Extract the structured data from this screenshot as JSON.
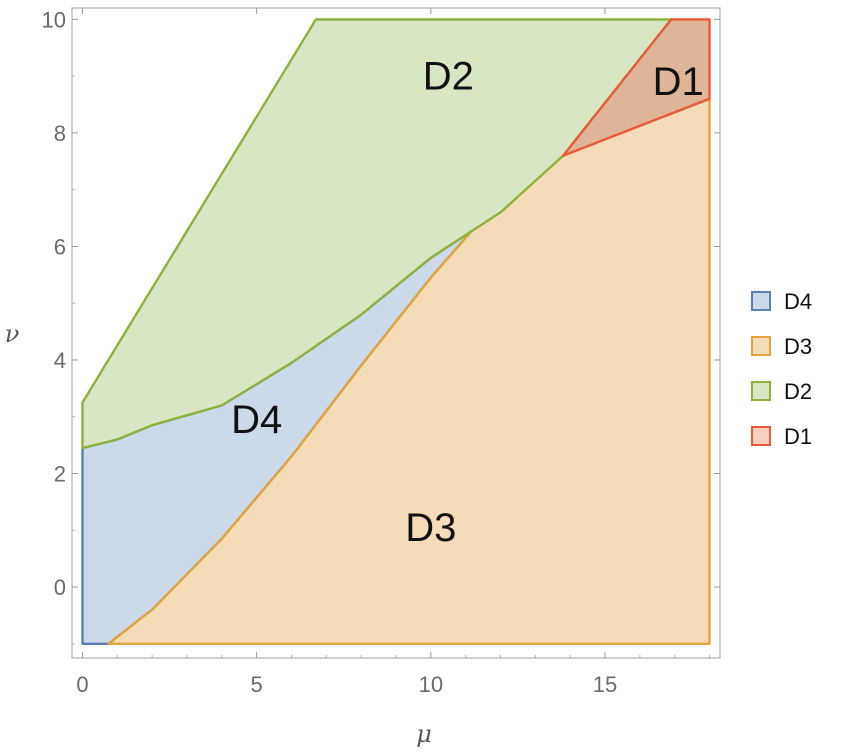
{
  "chart_data": {
    "type": "area",
    "title": "",
    "xlabel": "μ",
    "ylabel": "ν",
    "xlim": [
      -0.3,
      18.3
    ],
    "ylim": [
      -1.25,
      10.2
    ],
    "x_ticks": [
      0,
      5,
      10,
      15
    ],
    "y_ticks": [
      0,
      2,
      4,
      6,
      8,
      10
    ],
    "grid": false,
    "legend_position": "right",
    "regions": [
      {
        "name": "D4",
        "label": "D4",
        "label_at": [
          5,
          2.9
        ],
        "fill": "#cbd9e8",
        "stroke": "#5b7fb8",
        "polygon": [
          [
            0,
            -1
          ],
          [
            0.75,
            -1
          ],
          [
            2,
            -0.4
          ],
          [
            4,
            0.85
          ],
          [
            6,
            2.3
          ],
          [
            8,
            3.9
          ],
          [
            10,
            5.45
          ],
          [
            12,
            6.85
          ],
          [
            13.8,
            7.6
          ],
          [
            12,
            6.6
          ],
          [
            10,
            5.8
          ],
          [
            8,
            4.8
          ],
          [
            6,
            3.95
          ],
          [
            4,
            3.2
          ],
          [
            2,
            2.85
          ],
          [
            1,
            2.6
          ],
          [
            0,
            2.45
          ]
        ]
      },
      {
        "name": "D3",
        "label": "D3",
        "label_at": [
          10,
          1.0
        ],
        "fill": "#f5dcb9",
        "stroke": "#e3a23a",
        "polygon": [
          [
            0.75,
            -1
          ],
          [
            18,
            -1
          ],
          [
            18,
            8.6
          ],
          [
            13.8,
            7.6
          ],
          [
            12,
            6.85
          ],
          [
            10,
            5.45
          ],
          [
            8,
            3.9
          ],
          [
            6,
            2.3
          ],
          [
            4,
            0.85
          ],
          [
            2,
            -0.4
          ]
        ]
      },
      {
        "name": "D2",
        "label": "D2",
        "label_at": [
          10.5,
          8.95
        ],
        "fill": "#d8e6c4",
        "stroke": "#8db13a",
        "polygon": [
          [
            0,
            2.45
          ],
          [
            0,
            3.25
          ],
          [
            6.7,
            10
          ],
          [
            16.9,
            10
          ],
          [
            13.8,
            7.6
          ],
          [
            12,
            6.6
          ],
          [
            10,
            5.8
          ],
          [
            8,
            4.8
          ],
          [
            6,
            3.95
          ],
          [
            4,
            3.2
          ],
          [
            2,
            2.85
          ],
          [
            1,
            2.6
          ]
        ]
      },
      {
        "name": "D1",
        "label": "D1",
        "label_at": [
          17.1,
          8.85
        ],
        "fill": "#dfb598",
        "stroke": "#e85a38",
        "polygon": [
          [
            13.8,
            7.6
          ],
          [
            16.9,
            10
          ],
          [
            18,
            10
          ],
          [
            18,
            8.6
          ]
        ]
      }
    ],
    "legend": [
      {
        "label": "D4",
        "fill": "#cbd9e8",
        "stroke": "#5b7fb8"
      },
      {
        "label": "D3",
        "fill": "#f5dcb9",
        "stroke": "#e3a23a"
      },
      {
        "label": "D2",
        "fill": "#d8e6c4",
        "stroke": "#8db13a"
      },
      {
        "label": "D1",
        "fill": "#f6d2bf",
        "stroke": "#e85a38"
      }
    ]
  }
}
